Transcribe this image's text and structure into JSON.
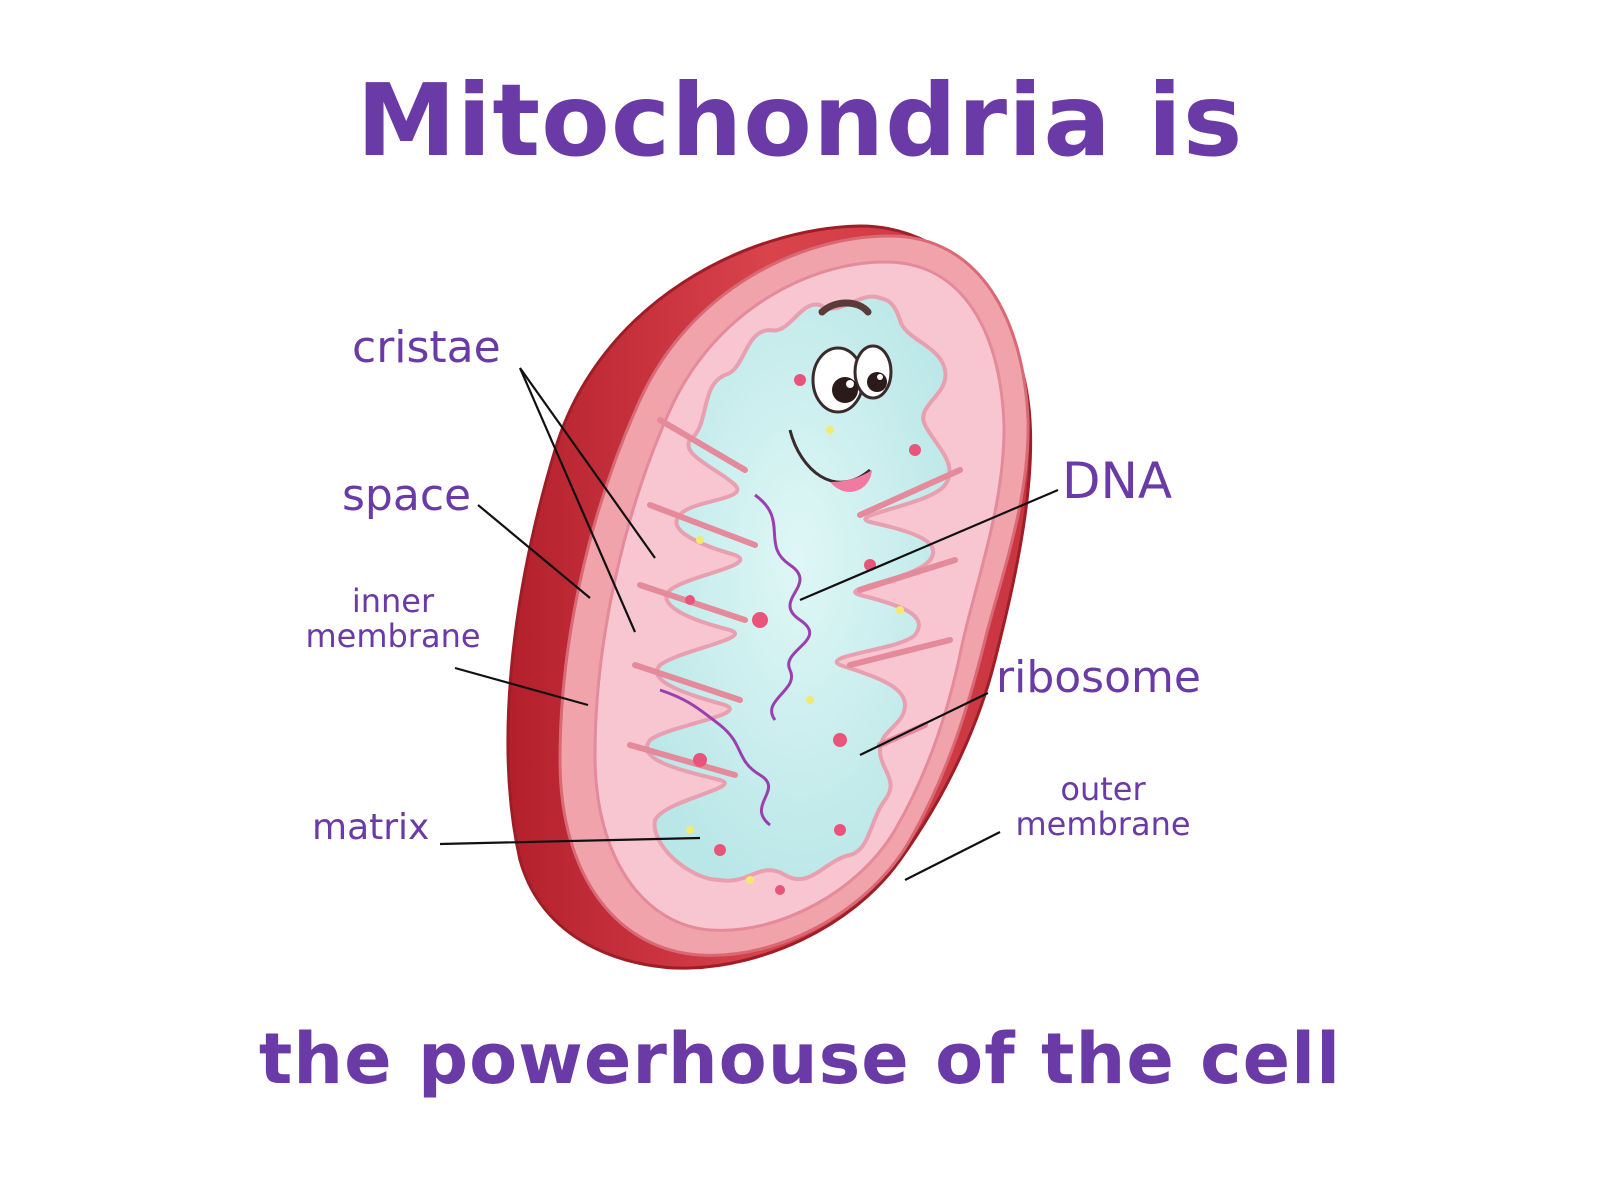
{
  "title": "Mitochondria is",
  "subtitle": "the powerhouse of the cell",
  "labels": {
    "cristae": "cristae",
    "space": "space",
    "inner_membrane_line1": "inner",
    "inner_membrane_line2": "membrane",
    "matrix": "matrix",
    "dna": "DNA",
    "ribosome": "ribosome",
    "outer_membrane_line1": "outer",
    "outer_membrane_line2": "membrane"
  },
  "colors": {
    "text": "#6a3aa6",
    "outer_membrane": "#d13a44",
    "intermembrane": "#f2a0a8",
    "cristae": "#f6c2cf",
    "matrix": "#c9eeee",
    "dna": "#9b3fb0"
  }
}
